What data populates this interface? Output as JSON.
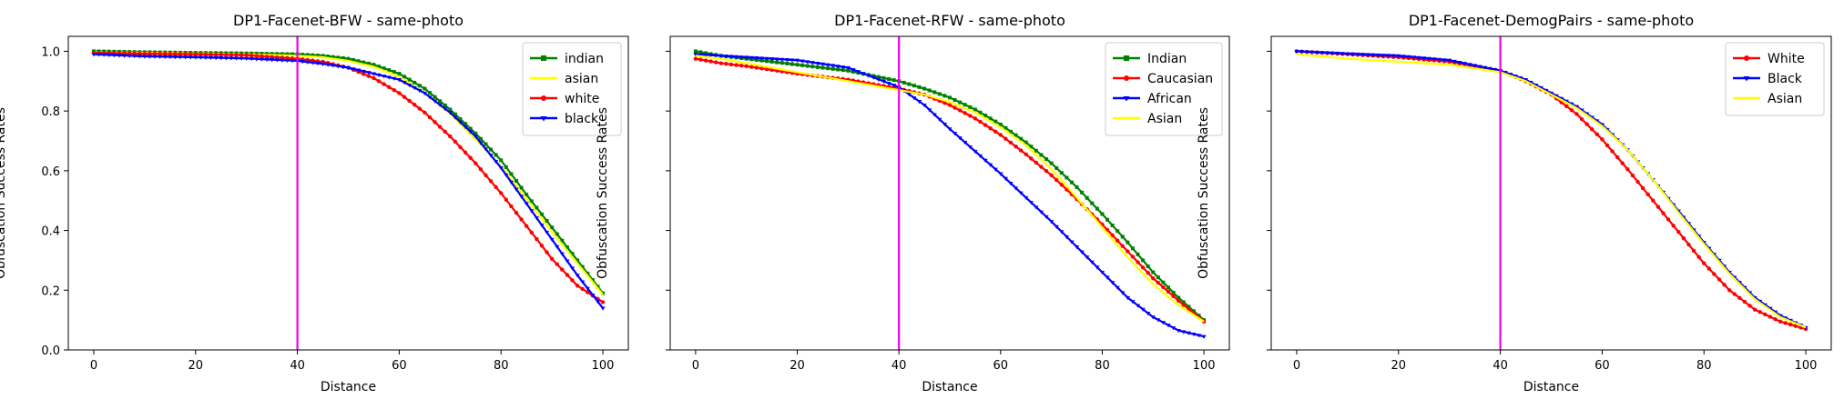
{
  "chart_data": [
    {
      "type": "line",
      "title": "DP1-Facenet-BFW - same-photo",
      "xlabel": "Distance",
      "ylabel": "Obfuscation Success Rates",
      "xlim": [
        -5,
        105
      ],
      "ylim": [
        0.0,
        1.05
      ],
      "xticks": [
        "0",
        "20",
        "40",
        "60",
        "80",
        "100"
      ],
      "yticks": [
        "0.0",
        "0.2",
        "0.4",
        "0.6",
        "0.8",
        "1.0"
      ],
      "show_ytick_labels": true,
      "vline": {
        "x": 40,
        "color": "#ee00ee"
      },
      "legend_position": "top-right",
      "grid": false,
      "series": [
        {
          "name": "indian",
          "color": "#008000",
          "marker": "square",
          "x": [
            0,
            10,
            20,
            30,
            40,
            45,
            50,
            55,
            60,
            65,
            70,
            75,
            80,
            85,
            90,
            95,
            100
          ],
          "y": [
            1.0,
            0.997,
            0.995,
            0.993,
            0.99,
            0.985,
            0.975,
            0.955,
            0.925,
            0.875,
            0.805,
            0.725,
            0.635,
            0.52,
            0.41,
            0.3,
            0.19
          ]
        },
        {
          "name": "asian",
          "color": "#ffff00",
          "marker": "none",
          "x": [
            0,
            10,
            20,
            30,
            40,
            45,
            50,
            55,
            60,
            65,
            70,
            75,
            80,
            85,
            90,
            95,
            100
          ],
          "y": [
            0.997,
            0.995,
            0.993,
            0.99,
            0.985,
            0.98,
            0.968,
            0.948,
            0.915,
            0.86,
            0.79,
            0.705,
            0.615,
            0.505,
            0.395,
            0.29,
            0.185
          ]
        },
        {
          "name": "white",
          "color": "#ff0000",
          "marker": "dot",
          "x": [
            0,
            10,
            20,
            30,
            40,
            45,
            50,
            55,
            60,
            65,
            70,
            75,
            80,
            85,
            90,
            95,
            100
          ],
          "y": [
            0.995,
            0.992,
            0.99,
            0.987,
            0.975,
            0.965,
            0.945,
            0.91,
            0.86,
            0.795,
            0.715,
            0.625,
            0.525,
            0.415,
            0.305,
            0.215,
            0.16
          ]
        },
        {
          "name": "black",
          "color": "#0000ff",
          "marker": "triangle",
          "x": [
            0,
            10,
            20,
            30,
            40,
            45,
            50,
            55,
            60,
            65,
            70,
            75,
            80,
            85,
            90,
            95,
            100
          ],
          "y": [
            0.99,
            0.983,
            0.98,
            0.976,
            0.968,
            0.958,
            0.945,
            0.925,
            0.905,
            0.86,
            0.795,
            0.715,
            0.61,
            0.49,
            0.37,
            0.25,
            0.14
          ]
        }
      ]
    },
    {
      "type": "line",
      "title": "DP1-Facenet-RFW - same-photo",
      "xlabel": "Distance",
      "ylabel": "Obfuscation Success Rates",
      "xlim": [
        -5,
        105
      ],
      "ylim": [
        0.0,
        1.05
      ],
      "xticks": [
        "0",
        "20",
        "40",
        "60",
        "80",
        "100"
      ],
      "yticks": [
        "0.0",
        "0.2",
        "0.4",
        "0.6",
        "0.8",
        "1.0"
      ],
      "show_ytick_labels": false,
      "vline": {
        "x": 40,
        "color": "#ee00ee"
      },
      "legend_position": "top-right",
      "grid": false,
      "series": [
        {
          "name": "Indian",
          "color": "#008000",
          "marker": "square",
          "x": [
            0,
            5,
            10,
            20,
            30,
            40,
            45,
            50,
            55,
            60,
            65,
            70,
            75,
            80,
            85,
            90,
            95,
            100
          ],
          "y": [
            1.0,
            0.985,
            0.975,
            0.955,
            0.935,
            0.9,
            0.875,
            0.845,
            0.805,
            0.755,
            0.695,
            0.625,
            0.545,
            0.455,
            0.36,
            0.26,
            0.175,
            0.1
          ]
        },
        {
          "name": "Caucasian",
          "color": "#ff0000",
          "marker": "dot",
          "x": [
            0,
            5,
            10,
            20,
            30,
            40,
            45,
            50,
            55,
            60,
            65,
            70,
            75,
            80,
            85,
            90,
            95,
            100
          ],
          "y": [
            0.975,
            0.96,
            0.95,
            0.925,
            0.905,
            0.875,
            0.855,
            0.82,
            0.775,
            0.72,
            0.655,
            0.585,
            0.505,
            0.42,
            0.33,
            0.24,
            0.165,
            0.095
          ]
        },
        {
          "name": "African",
          "color": "#0000ff",
          "marker": "triangle",
          "x": [
            0,
            5,
            10,
            20,
            30,
            40,
            45,
            50,
            55,
            60,
            65,
            70,
            75,
            80,
            85,
            90,
            95,
            100
          ],
          "y": [
            0.99,
            0.985,
            0.98,
            0.97,
            0.945,
            0.88,
            0.82,
            0.74,
            0.665,
            0.59,
            0.51,
            0.43,
            0.345,
            0.26,
            0.175,
            0.11,
            0.065,
            0.045
          ]
        },
        {
          "name": "Asian",
          "color": "#ffff00",
          "marker": "none",
          "x": [
            0,
            5,
            10,
            20,
            30,
            40,
            45,
            50,
            55,
            60,
            65,
            70,
            75,
            80,
            85,
            90,
            95,
            100
          ],
          "y": [
            0.985,
            0.975,
            0.96,
            0.93,
            0.9,
            0.87,
            0.855,
            0.83,
            0.795,
            0.745,
            0.685,
            0.605,
            0.51,
            0.41,
            0.31,
            0.22,
            0.15,
            0.095
          ]
        }
      ]
    },
    {
      "type": "line",
      "title": "DP1-Facenet-DemogPairs - same-photo",
      "xlabel": "Distance",
      "ylabel": "Obfuscation Success Rates",
      "xlim": [
        -5,
        105
      ],
      "ylim": [
        0.0,
        1.05
      ],
      "xticks": [
        "0",
        "20",
        "40",
        "60",
        "80",
        "100"
      ],
      "yticks": [
        "0.0",
        "0.2",
        "0.4",
        "0.6",
        "0.8",
        "1.0"
      ],
      "show_ytick_labels": false,
      "vline": {
        "x": 40,
        "color": "#ee00ee"
      },
      "legend_position": "top-right",
      "grid": false,
      "series": [
        {
          "name": "White",
          "color": "#ff0000",
          "marker": "dot",
          "x": [
            0,
            10,
            20,
            30,
            40,
            45,
            50,
            55,
            60,
            65,
            70,
            75,
            80,
            85,
            90,
            95,
            100
          ],
          "y": [
            1.0,
            0.99,
            0.98,
            0.965,
            0.935,
            0.9,
            0.855,
            0.79,
            0.705,
            0.605,
            0.5,
            0.395,
            0.29,
            0.2,
            0.135,
            0.095,
            0.07
          ]
        },
        {
          "name": "Black",
          "color": "#0000ff",
          "marker": "triangle",
          "x": [
            0,
            10,
            20,
            30,
            40,
            45,
            50,
            55,
            60,
            65,
            70,
            75,
            80,
            85,
            90,
            95,
            100
          ],
          "y": [
            1.0,
            0.992,
            0.985,
            0.97,
            0.935,
            0.905,
            0.86,
            0.815,
            0.755,
            0.67,
            0.57,
            0.465,
            0.36,
            0.26,
            0.175,
            0.115,
            0.075
          ]
        },
        {
          "name": "Asian",
          "color": "#ffff00",
          "marker": "none",
          "x": [
            0,
            10,
            20,
            30,
            40,
            45,
            50,
            55,
            60,
            65,
            70,
            75,
            80,
            85,
            90,
            95,
            100
          ],
          "y": [
            0.99,
            0.975,
            0.965,
            0.955,
            0.93,
            0.9,
            0.855,
            0.81,
            0.75,
            0.67,
            0.57,
            0.46,
            0.355,
            0.255,
            0.17,
            0.11,
            0.075
          ]
        }
      ]
    }
  ]
}
